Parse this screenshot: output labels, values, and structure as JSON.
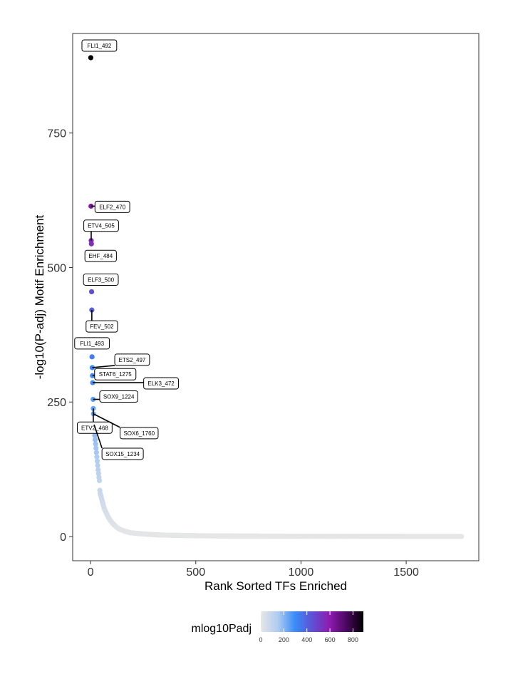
{
  "chart_data": {
    "type": "scatter",
    "title": "",
    "xlabel": "Rank Sorted TFs Enriched",
    "ylabel": "-log10(P-adj) Motif Enrichment",
    "xlim": [
      -85,
      1845
    ],
    "ylim": [
      -45,
      935
    ],
    "x_ticks": [
      0,
      500,
      1000,
      1500
    ],
    "x_tick_labels": [
      "0",
      "500",
      "1000",
      "1500"
    ],
    "y_ticks": [
      0,
      250,
      500,
      750
    ],
    "y_tick_labels": [
      "0",
      "250",
      "500",
      "750"
    ],
    "grid": false,
    "legend": {
      "title": "mlog10Padj",
      "position": "bottom",
      "type": "colorbar",
      "ticks": [
        0,
        200,
        400,
        600,
        800
      ],
      "tick_labels": [
        "0",
        "200",
        "400",
        "600",
        "800"
      ],
      "range": [
        0,
        890
      ],
      "colors": [
        "#e6e6e6",
        "#b0ccf0",
        "#3a8cf8",
        "#5e51d5",
        "#8e1cb0",
        "#4a0860",
        "#000000"
      ]
    },
    "labeled_points": [
      {
        "name": "FLI1_492",
        "x": 1,
        "y": 890
      },
      {
        "name": "ELF2_470",
        "x": 2,
        "y": 614
      },
      {
        "name": "ETV4_505",
        "x": 3,
        "y": 550
      },
      {
        "name": "EHF_484",
        "x": 4,
        "y": 544
      },
      {
        "name": "ELF3_500",
        "x": 5,
        "y": 455
      },
      {
        "name": "FEV_502",
        "x": 6,
        "y": 421
      },
      {
        "name": "FLI1_493",
        "x": 7,
        "y": 334
      },
      {
        "name": "ETS2_497",
        "x": 8,
        "y": 314
      },
      {
        "name": "STAT6_1275",
        "x": 9,
        "y": 299
      },
      {
        "name": "ELK3_472",
        "x": 10,
        "y": 286
      },
      {
        "name": "SOX9_1224",
        "x": 12,
        "y": 255
      },
      {
        "name": "ETV2_468",
        "x": 13,
        "y": 238
      },
      {
        "name": "SOX6_1760",
        "x": 14,
        "y": 228
      },
      {
        "name": "SOX15_1234",
        "x": 17,
        "y": 208
      }
    ],
    "curve": [
      [
        18,
        200
      ],
      [
        20,
        188
      ],
      [
        22,
        180
      ],
      [
        24,
        172
      ],
      [
        26,
        164
      ],
      [
        28,
        156
      ],
      [
        30,
        148
      ],
      [
        32,
        140
      ],
      [
        34,
        132
      ],
      [
        36,
        124
      ],
      [
        38,
        117
      ],
      [
        40,
        110
      ],
      [
        42,
        104
      ],
      [
        44,
        86
      ],
      [
        46,
        80
      ],
      [
        50,
        74
      ],
      [
        54,
        68
      ],
      [
        58,
        62
      ],
      [
        62,
        56
      ],
      [
        66,
        51
      ],
      [
        72,
        46
      ],
      [
        78,
        41
      ],
      [
        84,
        36
      ],
      [
        90,
        32
      ],
      [
        98,
        28
      ],
      [
        106,
        24
      ],
      [
        114,
        21
      ],
      [
        122,
        18
      ],
      [
        132,
        15
      ],
      [
        142,
        13
      ],
      [
        155,
        11
      ],
      [
        170,
        9
      ],
      [
        190,
        7
      ],
      [
        215,
        6
      ],
      [
        245,
        5
      ],
      [
        280,
        4
      ],
      [
        320,
        3
      ],
      [
        370,
        2.5
      ],
      [
        430,
        2
      ],
      [
        500,
        1.5
      ],
      [
        580,
        1.2
      ],
      [
        680,
        1
      ],
      [
        800,
        0.8
      ],
      [
        950,
        0.6
      ],
      [
        1100,
        0.5
      ],
      [
        1300,
        0.4
      ],
      [
        1500,
        0.3
      ],
      [
        1700,
        0.2
      ],
      [
        1763,
        0.1
      ]
    ]
  }
}
